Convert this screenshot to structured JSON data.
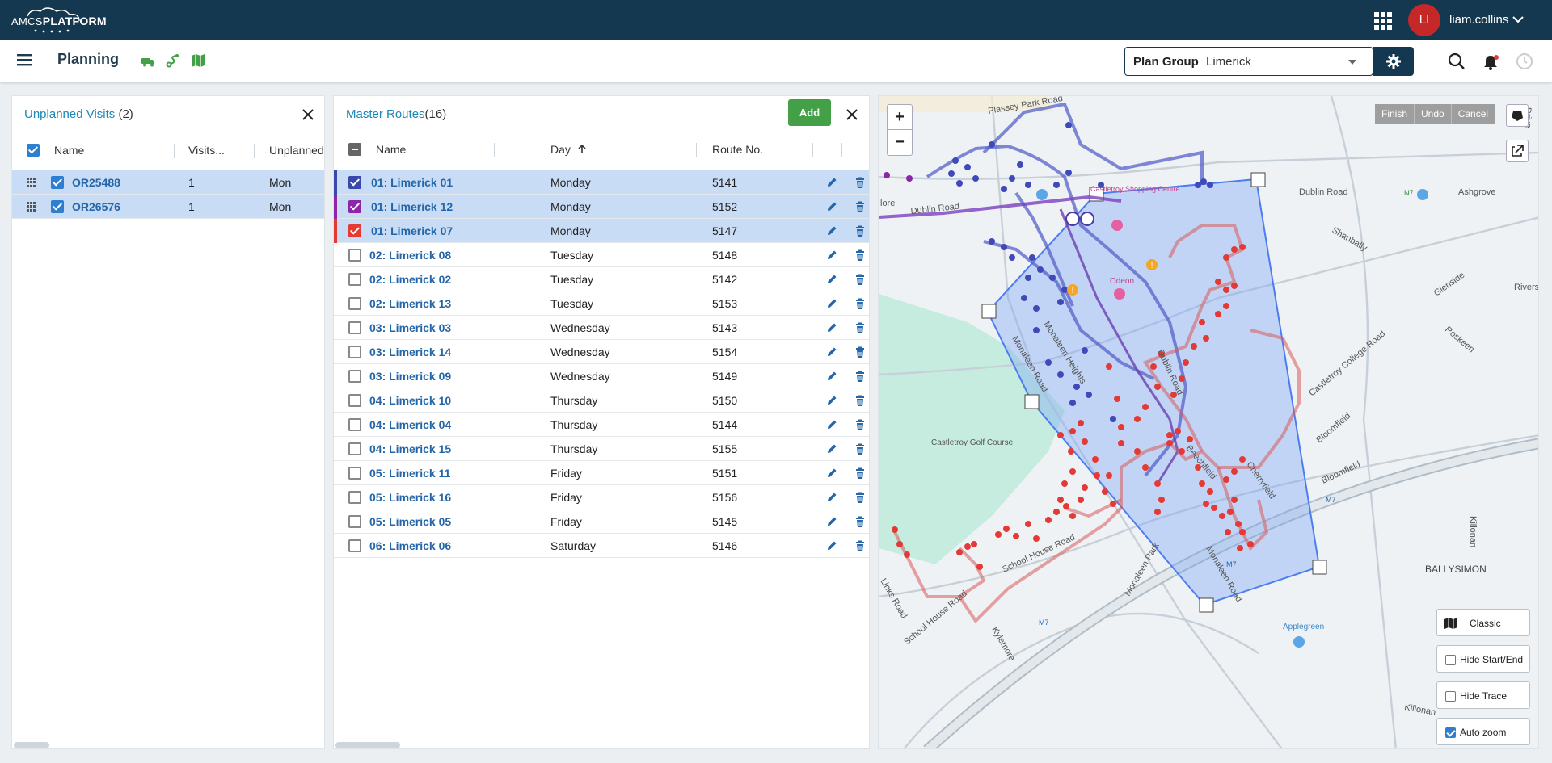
{
  "app": {
    "logo_prefix": "AMCS",
    "logo_main": "PLATFORM",
    "user_initials": "LI",
    "username": "liam.collins",
    "page_title": "Planning"
  },
  "plan_group": {
    "label": "Plan Group",
    "value": "Limerick"
  },
  "unplanned": {
    "title": "Unplanned Visits",
    "count": "(2)",
    "columns": [
      "Name",
      "Visits...",
      "Unplanned"
    ],
    "rows": [
      {
        "name": "OR25488",
        "visits": "1",
        "unplanned": "Mon"
      },
      {
        "name": "OR26576",
        "visits": "1",
        "unplanned": "Mon"
      }
    ]
  },
  "routes": {
    "title": "Master Routes",
    "count": "(16)",
    "add_label": "Add",
    "columns": [
      "Name",
      "Day",
      "Route No."
    ],
    "rows": [
      {
        "name": "01: Limerick 01",
        "day": "Monday",
        "route": "5141",
        "checked": true,
        "color": "#3949ab"
      },
      {
        "name": "01: Limerick 12",
        "day": "Monday",
        "route": "5152",
        "checked": true,
        "color": "#8e24aa"
      },
      {
        "name": "01: Limerick 07",
        "day": "Monday",
        "route": "5147",
        "checked": true,
        "color": "#e53935"
      },
      {
        "name": "02: Limerick 08",
        "day": "Tuesday",
        "route": "5148",
        "checked": false,
        "color": ""
      },
      {
        "name": "02: Limerick 02",
        "day": "Tuesday",
        "route": "5142",
        "checked": false,
        "color": ""
      },
      {
        "name": "02: Limerick 13",
        "day": "Tuesday",
        "route": "5153",
        "checked": false,
        "color": ""
      },
      {
        "name": "03: Limerick 03",
        "day": "Wednesday",
        "route": "5143",
        "checked": false,
        "color": ""
      },
      {
        "name": "03: Limerick 14",
        "day": "Wednesday",
        "route": "5154",
        "checked": false,
        "color": ""
      },
      {
        "name": "03: Limerick 09",
        "day": "Wednesday",
        "route": "5149",
        "checked": false,
        "color": ""
      },
      {
        "name": "04: Limerick 10",
        "day": "Thursday",
        "route": "5150",
        "checked": false,
        "color": ""
      },
      {
        "name": "04: Limerick 04",
        "day": "Thursday",
        "route": "5144",
        "checked": false,
        "color": ""
      },
      {
        "name": "04: Limerick 15",
        "day": "Thursday",
        "route": "5155",
        "checked": false,
        "color": ""
      },
      {
        "name": "05: Limerick 11",
        "day": "Friday",
        "route": "5151",
        "checked": false,
        "color": ""
      },
      {
        "name": "05: Limerick 16",
        "day": "Friday",
        "route": "5156",
        "checked": false,
        "color": ""
      },
      {
        "name": "05: Limerick 05",
        "day": "Friday",
        "route": "5145",
        "checked": false,
        "color": ""
      },
      {
        "name": "06: Limerick 06",
        "day": "Saturday",
        "route": "5146",
        "checked": false,
        "color": ""
      }
    ]
  },
  "map": {
    "draw_tools": [
      "Finish",
      "Undo",
      "Cancel"
    ],
    "controls": {
      "classic": "Classic",
      "hide_start_end": "Hide Start/End",
      "hide_trace": "Hide Trace",
      "auto_zoom": "Auto zoom"
    },
    "labels": [
      "Plassey Park Road",
      "Dublin Road",
      "Dublin Road",
      "Ashgrove",
      "Shanbally",
      "Glenside",
      "Castletroy Shopping Centre",
      "Odeon",
      "Monaleen Road",
      "Monaleen Heights",
      "Dublin Road",
      "Castletroy College Road",
      "Roskeen",
      "Castletroy Golf Course",
      "Bloomfield",
      "Bloomfield",
      "Beechfield",
      "Cherryfield",
      "School House Road",
      "Monaleen Park",
      "Kylemore",
      "School House Road",
      "Links Road",
      "Monaleen Road",
      "Killonan",
      "BALLYSIMON",
      "Applegreen",
      "Killonan",
      "M7",
      "M7",
      "N7",
      "M7",
      "Rivers",
      "Drive",
      "lore"
    ],
    "route_colors": {
      "blue": "#3f51b5",
      "purple": "#7b3fbf",
      "red": "#e53935",
      "polygon": "#4c7df0"
    }
  }
}
